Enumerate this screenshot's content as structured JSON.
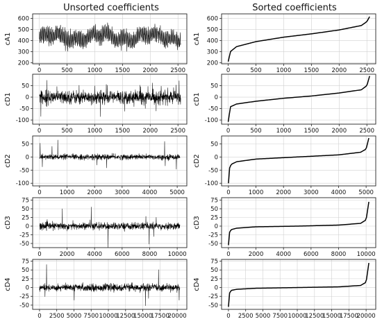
{
  "titles": {
    "left": "Unsorted coefficients",
    "right": "Sorted coefficients"
  },
  "colors": {
    "line": "#000000",
    "grid": "#d0d0d0",
    "frame": "#222222"
  },
  "chart_data": [
    {
      "type": "line",
      "column": "unsorted",
      "ylabel": "cA1",
      "xlim": [
        -120,
        2660
      ],
      "ylim": [
        190,
        640
      ],
      "xticks": [
        0,
        500,
        1000,
        1500,
        2000,
        2500
      ],
      "yticks": [
        200,
        300,
        400,
        500,
        600
      ],
      "n_points": 2550,
      "series": [
        {
          "description": "approximation coefficients, oscillating ~260–600, centred ~430"
        }
      ]
    },
    {
      "type": "line",
      "column": "sorted",
      "ylabel": "cA1",
      "xlim": [
        -120,
        2660
      ],
      "ylim": [
        190,
        640
      ],
      "xticks": [
        0,
        500,
        1000,
        1500,
        2000,
        2500
      ],
      "yticks": [
        200,
        300,
        400,
        500,
        600
      ],
      "x": [
        0,
        40,
        150,
        500,
        1000,
        1500,
        2000,
        2400,
        2500,
        2549
      ],
      "y": [
        210,
        300,
        345,
        390,
        430,
        460,
        495,
        535,
        570,
        615
      ]
    },
    {
      "type": "line",
      "column": "unsorted",
      "ylabel": "cD1",
      "xlim": [
        -120,
        2660
      ],
      "ylim": [
        -118,
        100
      ],
      "xticks": [
        0,
        500,
        1000,
        1500,
        2000,
        2500
      ],
      "yticks": [
        -100,
        -50,
        0,
        50
      ],
      "n_points": 2550,
      "series": [
        {
          "description": "detail coefficients, mostly within ±40, spikes to -100 near x≈1000"
        }
      ]
    },
    {
      "type": "line",
      "column": "sorted",
      "ylabel": "cD1",
      "xlim": [
        -120,
        2660
      ],
      "ylim": [
        -118,
        100
      ],
      "xticks": [
        0,
        500,
        1000,
        1500,
        2000,
        2500
      ],
      "yticks": [
        -100,
        -50,
        0,
        50
      ],
      "x": [
        0,
        40,
        150,
        500,
        1000,
        1500,
        2000,
        2400,
        2500,
        2549
      ],
      "y": [
        -108,
        -42,
        -30,
        -18,
        -5,
        5,
        18,
        32,
        50,
        92
      ]
    },
    {
      "type": "line",
      "column": "unsorted",
      "ylabel": "cD2",
      "xlim": [
        -250,
        5350
      ],
      "ylim": [
        -110,
        80
      ],
      "xticks": [
        0,
        1000,
        2000,
        3000,
        4000,
        5000
      ],
      "yticks": [
        -100,
        -50,
        0,
        50
      ],
      "n_points": 5100,
      "series": [
        {
          "description": "detail coefficients, mostly within ±20, spikes to +70 and -95"
        }
      ]
    },
    {
      "type": "line",
      "column": "sorted",
      "ylabel": "cD2",
      "xlim": [
        -250,
        5350
      ],
      "ylim": [
        -110,
        80
      ],
      "xticks": [
        0,
        1000,
        2000,
        3000,
        4000,
        5000
      ],
      "yticks": [
        -100,
        -50,
        0,
        50
      ],
      "x": [
        0,
        30,
        100,
        300,
        1000,
        2500,
        4000,
        4800,
        5000,
        5099
      ],
      "y": [
        -100,
        -45,
        -28,
        -18,
        -8,
        0,
        8,
        18,
        30,
        72
      ]
    },
    {
      "type": "line",
      "column": "unsorted",
      "ylabel": "cD3",
      "xlim": [
        -500,
        10700
      ],
      "ylim": [
        -62,
        82
      ],
      "xticks": [
        0,
        2000,
        4000,
        6000,
        8000,
        10000
      ],
      "yticks": [
        -50,
        -25,
        0,
        25,
        50,
        75
      ],
      "n_points": 10200,
      "series": [
        {
          "description": "detail coefficients, mostly within ±10, spikes to +75 and -55"
        }
      ]
    },
    {
      "type": "line",
      "column": "sorted",
      "ylabel": "cD3",
      "xlim": [
        -500,
        10700
      ],
      "ylim": [
        -62,
        82
      ],
      "xticks": [
        0,
        2000,
        4000,
        6000,
        8000,
        10000
      ],
      "yticks": [
        -50,
        -25,
        0,
        25,
        50,
        75
      ],
      "x": [
        0,
        50,
        200,
        600,
        2000,
        5000,
        8000,
        9600,
        10000,
        10199
      ],
      "y": [
        -55,
        -20,
        -10,
        -6,
        -2,
        0,
        3,
        8,
        18,
        70
      ]
    },
    {
      "type": "line",
      "column": "unsorted",
      "ylabel": "cD4",
      "xlim": [
        -1000,
        21400
      ],
      "ylim": [
        -62,
        80
      ],
      "xticks": [
        0,
        2500,
        5000,
        7500,
        10000,
        12500,
        15000,
        17500,
        20000
      ],
      "yticks": [
        -50,
        -25,
        0,
        25,
        50,
        75
      ],
      "n_points": 20400,
      "series": [
        {
          "description": "detail coefficients, mostly within ±10, spikes to +75 and -55"
        }
      ]
    },
    {
      "type": "line",
      "column": "sorted",
      "ylabel": "cD4",
      "xlim": [
        -1000,
        21400
      ],
      "ylim": [
        -62,
        80
      ],
      "xticks": [
        0,
        2500,
        5000,
        7500,
        10000,
        12500,
        15000,
        17500,
        20000
      ],
      "yticks": [
        -50,
        -25,
        0,
        25,
        50,
        75
      ],
      "x": [
        0,
        100,
        400,
        1200,
        4000,
        10000,
        16000,
        19200,
        20000,
        20399
      ],
      "y": [
        -55,
        -18,
        -8,
        -5,
        -2,
        0,
        2,
        6,
        15,
        70
      ]
    }
  ]
}
